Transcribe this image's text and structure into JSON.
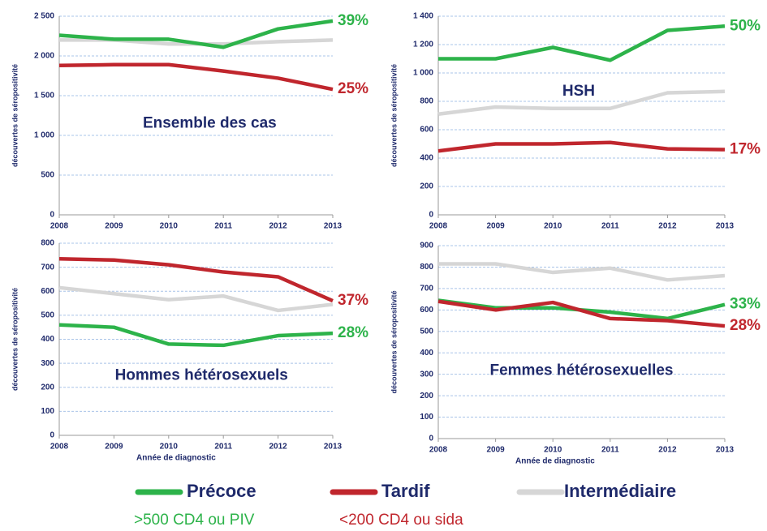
{
  "chart_data": [
    {
      "type": "line",
      "title": "Ensemble des cas",
      "y_label": "découvertes de séropositivité",
      "categories": [
        "2008",
        "2009",
        "2010",
        "2011",
        "2012",
        "2013"
      ],
      "ylim": [
        0,
        2500
      ],
      "yticks": [
        0,
        500,
        {
          "value": 1000,
          "label": "1 000"
        },
        {
          "value": 1500,
          "label": "1 500"
        },
        {
          "value": 2000,
          "label": "2 000"
        },
        {
          "value": 2500,
          "label": "2 500"
        }
      ],
      "grid": true,
      "series": [
        {
          "color": "#d6d6d6",
          "values": [
            2200,
            2200,
            2150,
            2150,
            2180,
            2200
          ]
        },
        {
          "color": "#2db34a",
          "values": [
            2260,
            2210,
            2210,
            2110,
            2340,
            2440
          ],
          "label": "39%"
        },
        {
          "color": "#c0262d",
          "values": [
            1880,
            1890,
            1890,
            1810,
            1720,
            1580
          ],
          "label": "25%"
        }
      ]
    },
    {
      "type": "line",
      "title": "HSH",
      "y_label": "découvertes de séropositivité",
      "categories": [
        "2008",
        "2009",
        "2010",
        "2011",
        "2012",
        "2013"
      ],
      "ylim": [
        0,
        1400
      ],
      "yticks": [
        0,
        200,
        400,
        600,
        800,
        {
          "value": 1000,
          "label": "1 000"
        },
        {
          "value": 1200,
          "label": "1 200"
        },
        {
          "value": 1400,
          "label": "1 400"
        }
      ],
      "grid": true,
      "series": [
        {
          "color": "#d6d6d6",
          "values": [
            710,
            760,
            750,
            750,
            860,
            870
          ]
        },
        {
          "color": "#2db34a",
          "values": [
            1100,
            1100,
            1180,
            1090,
            1300,
            1330
          ],
          "label": "50%"
        },
        {
          "color": "#c0262d",
          "values": [
            450,
            500,
            500,
            510,
            465,
            460
          ],
          "label": "17%"
        }
      ]
    },
    {
      "type": "line",
      "title": "Hommes hétérosexuels",
      "y_label": "découvertes de séropositivité",
      "x_label": "Année de diagnostic",
      "categories": [
        "2008",
        "2009",
        "2010",
        "2011",
        "2012",
        "2013"
      ],
      "ylim": [
        0,
        800
      ],
      "yticks": [
        0,
        100,
        200,
        300,
        400,
        500,
        600,
        700,
        800
      ],
      "grid": true,
      "series": [
        {
          "color": "#d6d6d6",
          "values": [
            615,
            590,
            565,
            580,
            520,
            545
          ]
        },
        {
          "color": "#2db34a",
          "values": [
            460,
            450,
            380,
            375,
            415,
            425
          ],
          "label": "28%"
        },
        {
          "color": "#c0262d",
          "values": [
            735,
            730,
            710,
            680,
            660,
            560
          ],
          "label": "37%"
        }
      ]
    },
    {
      "type": "line",
      "title": "Femmes hétérosexuelles",
      "y_label": "découvertes de séropositivité",
      "x_label": "Année de diagnostic",
      "categories": [
        "2008",
        "2009",
        "2010",
        "2011",
        "2012",
        "2013"
      ],
      "ylim": [
        0,
        900
      ],
      "yticks": [
        0,
        100,
        200,
        300,
        400,
        500,
        600,
        700,
        800,
        900
      ],
      "grid": true,
      "series": [
        {
          "color": "#d6d6d6",
          "values": [
            815,
            815,
            775,
            795,
            740,
            760
          ]
        },
        {
          "color": "#2db34a",
          "values": [
            645,
            610,
            610,
            590,
            560,
            625
          ],
          "label": "33%"
        },
        {
          "color": "#c0262d",
          "values": [
            640,
            600,
            635,
            560,
            550,
            525
          ],
          "label": "28%"
        }
      ]
    }
  ],
  "legend": [
    {
      "name": "Précoce",
      "color": "#2db34a",
      "note": ">500 CD4 ou PIV"
    },
    {
      "name": "Tardif",
      "color": "#c0262d",
      "note": "<200 CD4 ou sida"
    },
    {
      "name": "Intermédiaire",
      "color": "#d6d6d6"
    }
  ]
}
